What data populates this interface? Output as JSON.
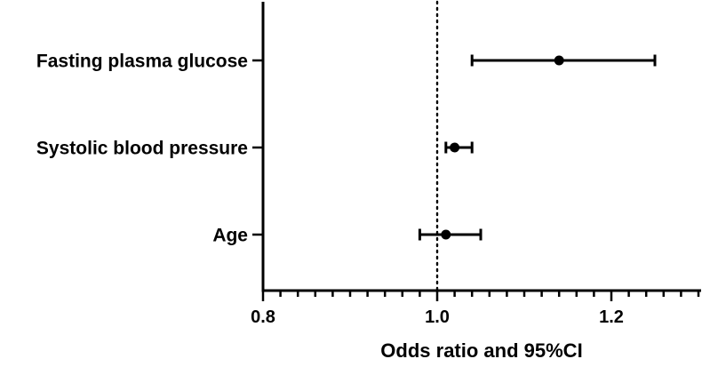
{
  "chart_data": {
    "type": "forest",
    "title": "",
    "xlabel": "Odds ratio and 95%CI",
    "ylabel": "",
    "xlim": [
      0.8,
      1.3
    ],
    "major_ticks": [
      0.8,
      1.0,
      1.2
    ],
    "tick_labels": [
      "0.8",
      "1.0",
      "1.2"
    ],
    "minor_tick_step": 0.02,
    "reference_line": 1.0,
    "reference_style": "dotted",
    "grid": false,
    "rows": [
      {
        "label": "Fasting plasma glucose",
        "or": 1.14,
        "ci_low": 1.04,
        "ci_high": 1.25
      },
      {
        "label": "Systolic blood pressure",
        "or": 1.02,
        "ci_low": 1.01,
        "ci_high": 1.04
      },
      {
        "label": "Age",
        "or": 1.01,
        "ci_low": 0.98,
        "ci_high": 1.05
      }
    ]
  }
}
